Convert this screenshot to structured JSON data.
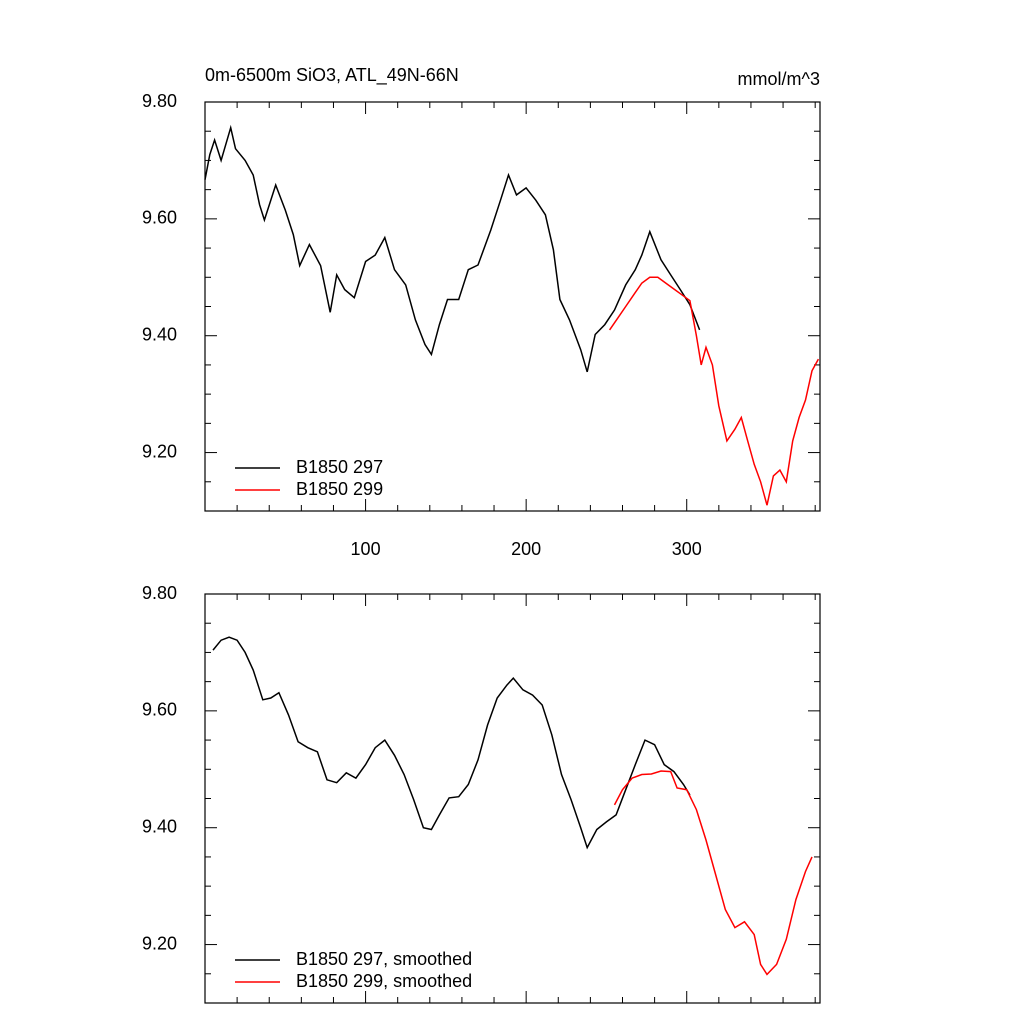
{
  "chart_data": [
    {
      "type": "line",
      "title": "0m-6500m SiO3, ATL_49N-66N",
      "units": "mmol/m^3",
      "xlim": [
        0,
        383
      ],
      "xticks": [
        100,
        200,
        300
      ],
      "xminorticks": [
        20,
        40,
        60,
        80,
        120,
        140,
        160,
        180,
        220,
        240,
        260,
        280,
        320,
        340,
        360,
        380
      ],
      "x_tick_labels": true,
      "ylim": [
        9.1,
        9.8
      ],
      "yticks": [
        {
          "value": 9.2,
          "label": "9.20"
        },
        {
          "value": 9.4,
          "label": "9.40"
        },
        {
          "value": 9.6,
          "label": "9.60"
        },
        {
          "value": 9.8,
          "label": "9.80"
        }
      ],
      "yminorticks": [
        9.15,
        9.25,
        9.3,
        9.35,
        9.45,
        9.5,
        9.55,
        9.65,
        9.7,
        9.75
      ],
      "legend": "lower left",
      "series": [
        {
          "name": "B1850 297",
          "color": "#000000",
          "x": [
            0,
            3,
            6,
            10,
            16,
            19,
            25,
            30,
            34,
            37,
            44,
            50,
            55,
            59,
            65,
            72,
            78,
            82,
            87,
            93,
            100,
            106,
            112,
            118,
            125,
            131,
            137,
            141,
            146,
            151,
            158,
            164,
            170,
            178,
            184,
            189,
            194,
            200,
            206,
            212,
            217,
            221,
            227,
            234,
            238,
            243,
            249,
            255,
            262,
            268,
            272,
            277,
            284,
            290,
            296,
            302,
            308
          ],
          "values": [
            9.667,
            9.71,
            9.735,
            9.7,
            9.756,
            9.72,
            9.7,
            9.675,
            9.624,
            9.598,
            9.658,
            9.615,
            9.573,
            9.52,
            9.556,
            9.52,
            9.44,
            9.504,
            9.479,
            9.465,
            9.527,
            9.538,
            9.568,
            9.513,
            9.487,
            9.427,
            9.385,
            9.368,
            9.419,
            9.462,
            9.462,
            9.513,
            9.521,
            9.581,
            9.632,
            9.675,
            9.641,
            9.653,
            9.632,
            9.607,
            9.547,
            9.462,
            9.427,
            9.376,
            9.338,
            9.402,
            9.419,
            9.444,
            9.487,
            9.513,
            9.538,
            9.578,
            9.53,
            9.504,
            9.479,
            9.453,
            9.41
          ]
        },
        {
          "name": "B1850 299",
          "color": "#ff0000",
          "x": [
            252,
            257,
            262,
            267,
            272,
            277,
            282,
            287,
            292,
            297,
            302,
            306,
            309,
            312,
            316,
            320,
            325,
            330,
            334,
            338,
            342,
            346,
            350,
            354,
            358,
            362,
            366,
            370,
            374,
            378,
            382
          ],
          "values": [
            9.41,
            9.43,
            9.45,
            9.47,
            9.49,
            9.5,
            9.5,
            9.49,
            9.48,
            9.47,
            9.46,
            9.4,
            9.35,
            9.38,
            9.35,
            9.28,
            9.22,
            9.24,
            9.26,
            9.22,
            9.18,
            9.15,
            9.11,
            9.16,
            9.17,
            9.15,
            9.22,
            9.26,
            9.29,
            9.34,
            9.36
          ]
        }
      ]
    },
    {
      "type": "line",
      "xlim": [
        0,
        383
      ],
      "xticks": [
        100,
        200,
        300
      ],
      "xminorticks": [
        20,
        40,
        60,
        80,
        120,
        140,
        160,
        180,
        220,
        240,
        260,
        280,
        320,
        340,
        360,
        380
      ],
      "x_tick_labels": false,
      "ylim": [
        9.1,
        9.8
      ],
      "yticks": [
        {
          "value": 9.2,
          "label": "9.20"
        },
        {
          "value": 9.4,
          "label": "9.40"
        },
        {
          "value": 9.6,
          "label": "9.60"
        },
        {
          "value": 9.8,
          "label": "9.80"
        }
      ],
      "yminorticks": [
        9.15,
        9.25,
        9.3,
        9.35,
        9.45,
        9.5,
        9.55,
        9.65,
        9.7,
        9.75
      ],
      "legend": "lower left",
      "series": [
        {
          "name": "B1850 297, smoothed",
          "color": "#000000",
          "x": [
            5,
            10,
            15,
            20,
            25,
            30,
            36,
            41,
            46,
            52,
            58,
            64,
            70,
            76,
            82,
            88,
            94,
            100,
            106,
            112,
            118,
            124,
            130,
            136,
            141,
            146,
            152,
            158,
            164,
            170,
            176,
            182,
            188,
            192,
            198,
            204,
            210,
            216,
            222,
            228,
            234,
            238,
            244,
            250,
            256,
            262,
            268,
            274,
            280,
            286,
            292,
            298,
            302
          ],
          "values": [
            9.704,
            9.721,
            9.726,
            9.721,
            9.7,
            9.67,
            9.619,
            9.622,
            9.631,
            9.593,
            9.547,
            9.537,
            9.53,
            9.482,
            9.477,
            9.494,
            9.485,
            9.508,
            9.537,
            9.55,
            9.524,
            9.491,
            9.448,
            9.4,
            9.397,
            9.422,
            9.451,
            9.453,
            9.474,
            9.516,
            9.576,
            9.622,
            9.644,
            9.656,
            9.636,
            9.627,
            9.61,
            9.559,
            9.491,
            9.448,
            9.4,
            9.366,
            9.397,
            9.41,
            9.422,
            9.465,
            9.508,
            9.55,
            9.542,
            9.508,
            9.496,
            9.474,
            9.456
          ]
        },
        {
          "name": "B1850 299, smoothed",
          "color": "#ff0000",
          "x": [
            255,
            260,
            266,
            272,
            278,
            284,
            290,
            294,
            300,
            306,
            312,
            318,
            324,
            330,
            336,
            342,
            346,
            350,
            356,
            362,
            368,
            374,
            378
          ],
          "values": [
            9.439,
            9.465,
            9.485,
            9.491,
            9.492,
            9.497,
            9.496,
            9.468,
            9.465,
            9.431,
            9.379,
            9.32,
            9.26,
            9.229,
            9.239,
            9.217,
            9.166,
            9.149,
            9.166,
            9.209,
            9.277,
            9.325,
            9.35
          ]
        }
      ]
    }
  ]
}
